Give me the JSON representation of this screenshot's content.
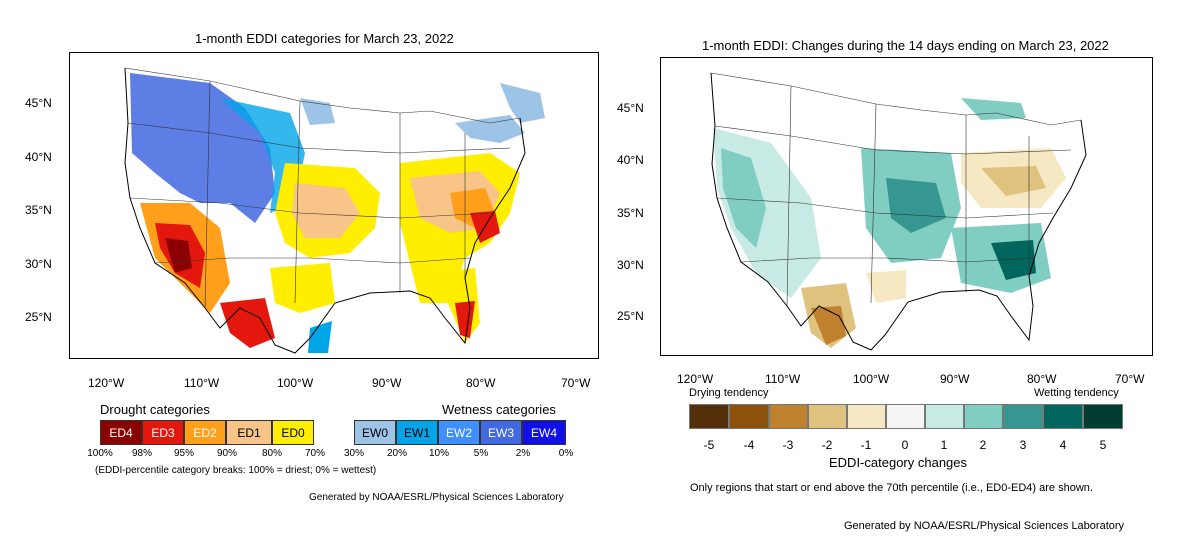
{
  "left": {
    "title": "1-month EDDI categories for March 23, 2022",
    "lat_ticks": [
      "45°N",
      "40°N",
      "35°N",
      "30°N",
      "25°N"
    ],
    "lon_ticks": [
      "120°W",
      "110°W",
      "100°W",
      "90°W",
      "80°W",
      "70°W"
    ],
    "legend": {
      "drought_header": "Drought categories",
      "wetness_header": "Wetness categories",
      "categories": [
        {
          "label": "ED4",
          "color": "#8b0000",
          "text_color": "#ffffff"
        },
        {
          "label": "ED3",
          "color": "#e3170d",
          "text_color": "#ffffff"
        },
        {
          "label": "ED2",
          "color": "#ff9f1a",
          "text_color": "#ffffff"
        },
        {
          "label": "ED1",
          "color": "#f8c487",
          "text_color": "#000000"
        },
        {
          "label": "ED0",
          "color": "#ffee00",
          "text_color": "#000000"
        },
        {
          "label": "",
          "color": "#ffffff",
          "text_color": "#000000"
        },
        {
          "label": "EW0",
          "color": "#9dc3e6",
          "text_color": "#000000"
        },
        {
          "label": "EW1",
          "color": "#00a5e8",
          "text_color": "#000000"
        },
        {
          "label": "EW2",
          "color": "#3f8fff",
          "text_color": "#ffffff"
        },
        {
          "label": "EW3",
          "color": "#4169e1",
          "text_color": "#ffffff"
        },
        {
          "label": "EW4",
          "color": "#1010e6",
          "text_color": "#ffffff"
        }
      ],
      "percent_ticks": [
        "100%",
        "98%",
        "95%",
        "90%",
        "80%",
        "70%",
        "30%",
        "20%",
        "10%",
        "5%",
        "2%",
        "0%"
      ],
      "note": "(EDDI-percentile category breaks: 100% = driest; 0% = wettest)",
      "credit": "Generated by NOAA/ESRL/Physical Sciences Laboratory"
    }
  },
  "right": {
    "title": "1-month EDDI: Changes during the 14 days ending on March 23, 2022",
    "lat_ticks": [
      "45°N",
      "40°N",
      "35°N",
      "30°N",
      "25°N"
    ],
    "lon_ticks": [
      "120°W",
      "110°W",
      "100°W",
      "90°W",
      "80°W",
      "70°W"
    ],
    "legend": {
      "drying_label": "Drying tendency",
      "wetting_label": "Wetting tendency",
      "title": "EDDI-category changes",
      "values": [
        "-5",
        "-4",
        "-3",
        "-2",
        "-1",
        "0",
        "1",
        "2",
        "3",
        "4",
        "5"
      ],
      "colors": [
        "#54300a",
        "#8c510a",
        "#bf812d",
        "#dfc27d",
        "#f6e8c3",
        "#f5f5f5",
        "#c7eae5",
        "#80cdc1",
        "#35978f",
        "#01665e",
        "#003c30"
      ],
      "note": "Only regions that start or end above the 70th percentile (i.e., ED0-ED4) are shown.",
      "credit": "Generated by NOAA/ESRL/Physical Sciences Laboratory"
    }
  }
}
